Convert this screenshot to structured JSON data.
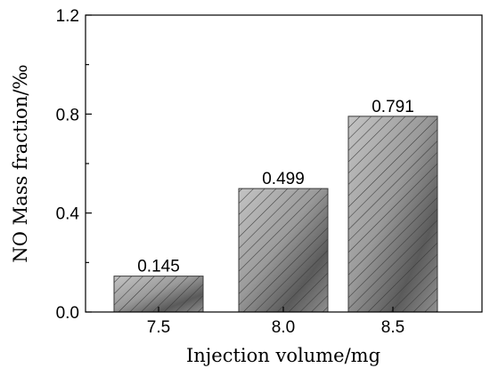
{
  "chart_data": {
    "type": "bar",
    "categories": [
      "7.5",
      "8.0",
      "8.5"
    ],
    "values": [
      0.145,
      0.499,
      0.791
    ],
    "data_labels": [
      "0.145",
      "0.499",
      "0.791"
    ],
    "xlabel": "Injection volume/mg",
    "ylabel": "NO Mass fraction/‰",
    "ylim": [
      0.0,
      1.2
    ],
    "yticks": [
      0.0,
      0.4,
      0.8,
      1.2
    ],
    "ytick_labels": [
      "0.0",
      "0.4",
      "0.8",
      "1.2"
    ],
    "minor_yticks": [
      0.2,
      0.6,
      1.0
    ],
    "grid": false,
    "legend": "none",
    "bar_fill": "gradient with diagonal hatching",
    "colors": {
      "bar_light": "#bdbdbd",
      "bar_dark": "#4a4a4a",
      "hatch": "#3a3a3a",
      "axis": "#000000"
    }
  }
}
